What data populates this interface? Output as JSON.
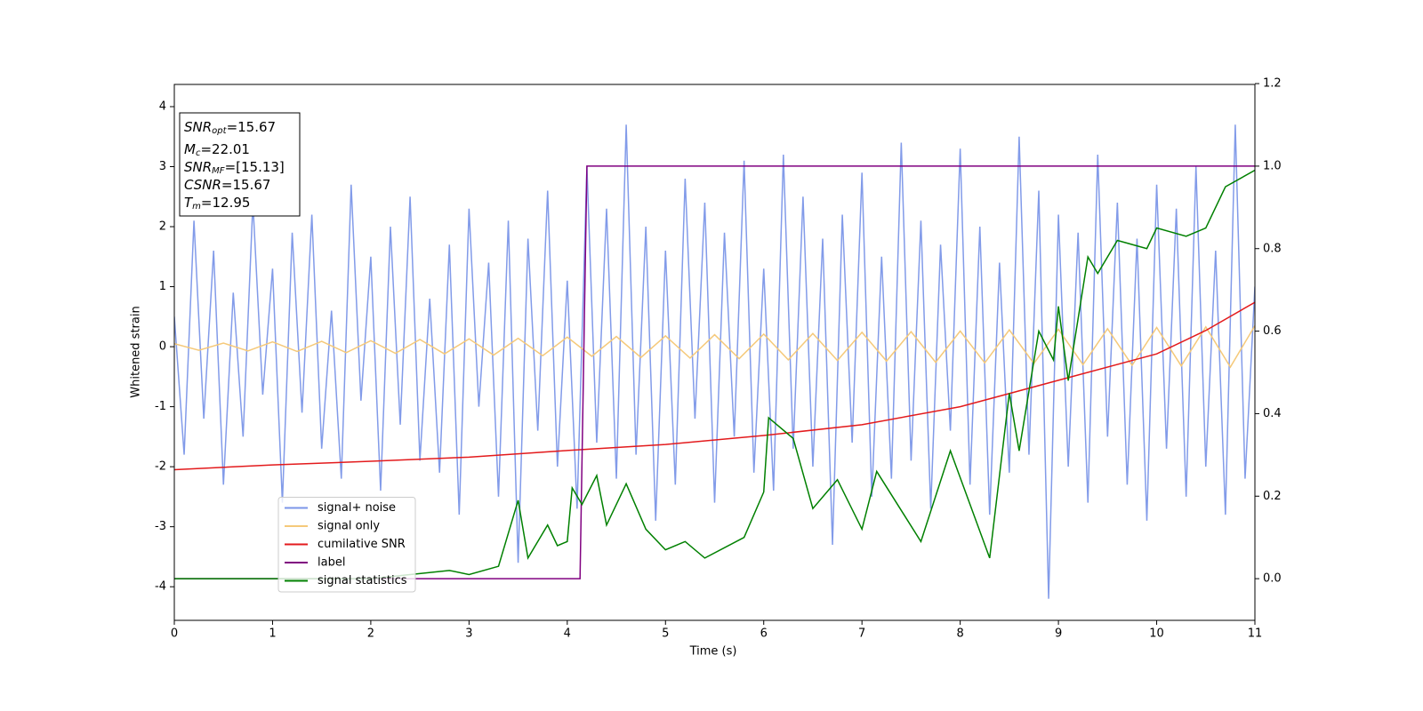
{
  "chart_data": {
    "type": "line",
    "xlabel": "Time (s)",
    "ylabel": "Whitened strain",
    "xlim": [
      0,
      11
    ],
    "xticks": [
      0,
      1,
      2,
      3,
      4,
      5,
      6,
      7,
      8,
      9,
      10,
      11
    ],
    "ylim": [
      -4.56,
      4.37
    ],
    "yticks": [
      -4,
      -3,
      -2,
      -1,
      0,
      1,
      2,
      3,
      4
    ],
    "y2lim": [
      -0.101,
      1.198
    ],
    "y2ticks": [
      {
        "value": 0,
        "label": "0.0"
      },
      {
        "value": 0.2,
        "label": "0.2"
      },
      {
        "value": 0.4,
        "label": "0.4"
      },
      {
        "value": 0.6,
        "label": "0.6"
      },
      {
        "value": 0.8,
        "label": "0.8"
      },
      {
        "value": 1.0,
        "label": "1.0"
      },
      {
        "value": 1.2,
        "label": "1.2"
      }
    ],
    "legend": "lower left",
    "annotations": [
      {
        "text": "SNR",
        "sub": "opt",
        "value": "=15.67"
      },
      {
        "text": "M",
        "sub": "c",
        "value": "=22.01"
      },
      {
        "text": "SNR",
        "sub": "MF",
        "value": "=[15.13]"
      },
      {
        "text": "CSNR",
        "value": "=15.67"
      },
      {
        "text": "T",
        "sub": "m",
        "value": "=12.95"
      }
    ],
    "series": [
      {
        "name": "signal+ noise",
        "color": "#7b96e8",
        "x": [
          0,
          0.1,
          0.2,
          0.3,
          0.4,
          0.5,
          0.6,
          0.7,
          0.8,
          0.9,
          1,
          1.1,
          1.2,
          1.3,
          1.4,
          1.5,
          1.6,
          1.7,
          1.8,
          1.9,
          2,
          2.1,
          2.2,
          2.3,
          2.4,
          2.5,
          2.6,
          2.7,
          2.8,
          2.9,
          3,
          3.1,
          3.2,
          3.3,
          3.4,
          3.5,
          3.6,
          3.7,
          3.8,
          3.9,
          4,
          4.1,
          4.2,
          4.3,
          4.4,
          4.5,
          4.6,
          4.7,
          4.8,
          4.9,
          5,
          5.1,
          5.2,
          5.3,
          5.4,
          5.5,
          5.6,
          5.7,
          5.8,
          5.9,
          6,
          6.1,
          6.2,
          6.3,
          6.4,
          6.5,
          6.6,
          6.7,
          6.8,
          6.9,
          7,
          7.1,
          7.2,
          7.3,
          7.4,
          7.5,
          7.6,
          7.7,
          7.8,
          7.9,
          8,
          8.1,
          8.2,
          8.3,
          8.4,
          8.5,
          8.6,
          8.7,
          8.8,
          8.9,
          9,
          9.1,
          9.2,
          9.3,
          9.4,
          9.5,
          9.6,
          9.7,
          9.8,
          9.9,
          10,
          10.1,
          10.2,
          10.3,
          10.4,
          10.5,
          10.6,
          10.7,
          10.8,
          10.9,
          11
        ],
        "values": [
          0.5,
          -1.8,
          2.1,
          -1.2,
          1.6,
          -2.3,
          0.9,
          -1.5,
          2.4,
          -0.8,
          1.3,
          -2.6,
          1.9,
          -1.1,
          2.2,
          -1.7,
          0.6,
          -2.2,
          2.7,
          -0.9,
          1.5,
          -2.4,
          2.0,
          -1.3,
          2.5,
          -1.9,
          0.8,
          -2.1,
          1.7,
          -2.8,
          2.3,
          -1.0,
          1.4,
          -2.5,
          2.1,
          -3.6,
          1.8,
          -1.4,
          2.6,
          -2.0,
          1.1,
          -2.7,
          3.0,
          -1.6,
          2.3,
          -2.2,
          3.7,
          -1.8,
          2.0,
          -2.9,
          1.6,
          -2.3,
          2.8,
          -1.2,
          2.4,
          -2.6,
          1.9,
          -1.5,
          3.1,
          -2.1,
          1.3,
          -2.4,
          3.2,
          -1.7,
          2.5,
          -2.0,
          1.8,
          -3.3,
          2.2,
          -1.6,
          2.9,
          -2.5,
          1.5,
          -2.2,
          3.4,
          -1.9,
          2.1,
          -2.7,
          1.7,
          -1.4,
          3.3,
          -2.3,
          2.0,
          -2.8,
          1.4,
          -2.1,
          3.5,
          -1.8,
          2.6,
          -4.2,
          2.2,
          -2.0,
          1.9,
          -2.6,
          3.2,
          -1.5,
          2.4,
          -2.3,
          1.8,
          -2.9,
          2.7,
          -1.7,
          2.3,
          -2.5,
          3.0,
          -2.0,
          1.6,
          -2.8,
          3.7,
          -2.2,
          1.0
        ]
      },
      {
        "name": "signal only",
        "color": "#f5c97a",
        "x": [
          0,
          0.25,
          0.5,
          0.75,
          1,
          1.25,
          1.5,
          1.75,
          2,
          2.25,
          2.5,
          2.75,
          3,
          3.25,
          3.5,
          3.75,
          4,
          4.25,
          4.5,
          4.75,
          5,
          5.25,
          5.5,
          5.75,
          6,
          6.25,
          6.5,
          6.75,
          7,
          7.25,
          7.5,
          7.75,
          8,
          8.25,
          8.5,
          8.75,
          9,
          9.25,
          9.5,
          9.75,
          10,
          10.25,
          10.5,
          10.75,
          11
        ],
        "values": [
          0.05,
          -0.06,
          0.06,
          -0.07,
          0.08,
          -0.08,
          0.09,
          -0.1,
          0.1,
          -0.11,
          0.12,
          -0.12,
          0.13,
          -0.14,
          0.14,
          -0.15,
          0.16,
          -0.16,
          0.17,
          -0.18,
          0.18,
          -0.19,
          0.2,
          -0.2,
          0.21,
          -0.22,
          0.22,
          -0.23,
          0.24,
          -0.24,
          0.25,
          -0.26,
          0.26,
          -0.27,
          0.28,
          -0.28,
          0.29,
          -0.3,
          0.3,
          -0.31,
          0.32,
          -0.32,
          0.33,
          -0.34,
          0.35
        ]
      },
      {
        "name": "cumilative SNR",
        "color": "#e31a1c",
        "x": [
          0,
          1,
          2,
          3,
          4,
          5,
          6,
          7,
          8,
          9,
          10,
          10.5,
          11
        ],
        "values": [
          -2.05,
          -1.97,
          -1.91,
          -1.84,
          -1.73,
          -1.63,
          -1.48,
          -1.3,
          -1.0,
          -0.56,
          -0.12,
          0.27,
          0.74
        ]
      },
      {
        "name": "label",
        "color": "purple",
        "axis": "y2",
        "x": [
          0,
          4.13,
          4.2,
          11
        ],
        "values": [
          0,
          0,
          1,
          1
        ]
      },
      {
        "name": "signal statistics",
        "color": "green",
        "axis": "y2",
        "x": [
          0,
          0.5,
          1,
          2,
          2.8,
          3,
          3.3,
          3.5,
          3.6,
          3.8,
          3.9,
          4.0,
          4.05,
          4.15,
          4.3,
          4.4,
          4.6,
          4.8,
          5,
          5.2,
          5.4,
          5.8,
          6.0,
          6.05,
          6.3,
          6.5,
          6.75,
          7.0,
          7.15,
          7.6,
          7.9,
          8.3,
          8.5,
          8.6,
          8.8,
          8.95,
          9.0,
          9.1,
          9.3,
          9.4,
          9.6,
          9.9,
          10,
          10.3,
          10.5,
          10.7,
          11
        ],
        "values": [
          0.0,
          0.0,
          0.0,
          0.0,
          0.02,
          0.01,
          0.03,
          0.19,
          0.05,
          0.13,
          0.08,
          0.09,
          0.22,
          0.18,
          0.25,
          0.13,
          0.23,
          0.12,
          0.07,
          0.09,
          0.05,
          0.1,
          0.21,
          0.39,
          0.34,
          0.17,
          0.24,
          0.12,
          0.26,
          0.09,
          0.31,
          0.05,
          0.45,
          0.31,
          0.6,
          0.53,
          0.66,
          0.48,
          0.78,
          0.74,
          0.82,
          0.8,
          0.85,
          0.83,
          0.85,
          0.95,
          0.99
        ]
      }
    ]
  }
}
